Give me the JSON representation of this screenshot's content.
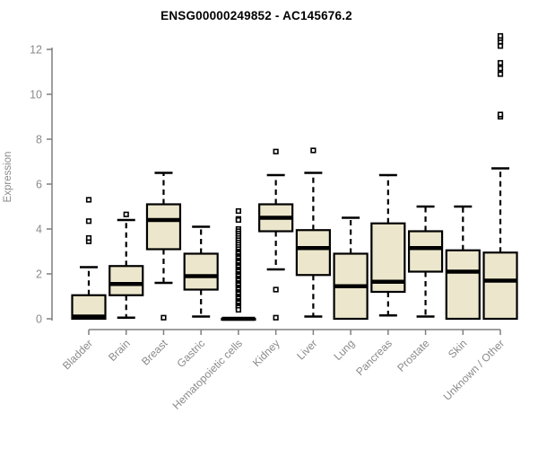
{
  "title": "ENSG00000249852 - AC145676.2",
  "chart_data": {
    "type": "boxplot",
    "title": "ENSG00000249852 - AC145676.2",
    "ylabel": "Expression",
    "xlabel": "",
    "ylim": [
      0,
      12.7
    ],
    "y_ticks": [
      0,
      2,
      4,
      6,
      8,
      10,
      12
    ],
    "grid": false,
    "legend": "none",
    "categories": [
      "Bladder",
      "Brain",
      "Breast",
      "Gastric",
      "Hematopoietic cells",
      "Kidney",
      "Liver",
      "Lung",
      "Pancreas",
      "Prostate",
      "Skin",
      "Unknown / Other"
    ],
    "series": [
      {
        "label": "Bladder",
        "low": 0,
        "q1": 0,
        "median": 0.1,
        "q3": 1.05,
        "high": 2.3,
        "outliers": [
          3.45,
          3.6,
          4.35,
          5.3
        ]
      },
      {
        "label": "Brain",
        "low": 0.05,
        "q1": 1.05,
        "median": 1.55,
        "q3": 2.35,
        "high": 4.4,
        "outliers": [
          4.65
        ]
      },
      {
        "label": "Breast",
        "low": 1.6,
        "q1": 3.1,
        "median": 4.4,
        "q3": 5.1,
        "high": 6.5,
        "outliers": [
          0.05
        ]
      },
      {
        "label": "Gastric",
        "low": 0.1,
        "q1": 1.3,
        "median": 1.9,
        "q3": 2.9,
        "high": 4.1,
        "outliers": []
      },
      {
        "label": "Hematopoietic cells",
        "low": 0,
        "q1": 0,
        "median": 0,
        "q3": 0,
        "high": 0,
        "outliers": [
          4.8,
          4.45,
          4.4,
          4.0,
          3.9,
          3.8,
          3.7,
          3.6,
          3.5,
          3.4,
          3.3,
          3.2,
          3.1,
          3.0,
          2.95,
          2.9,
          2.8,
          2.75,
          2.7,
          2.6,
          2.55,
          2.5,
          2.4,
          2.35,
          2.3,
          2.2,
          2.15,
          2.1,
          2.0,
          1.95,
          1.9,
          1.8,
          1.75,
          1.7,
          1.6,
          1.55,
          1.5,
          1.4,
          1.35,
          1.3,
          1.2,
          1.15,
          1.1,
          1.0,
          0.95,
          0.9,
          0.8,
          0.75,
          0.7,
          0.6,
          0.55,
          0.5,
          0.4
        ]
      },
      {
        "label": "Kidney",
        "low": 2.2,
        "q1": 3.9,
        "median": 4.5,
        "q3": 5.1,
        "high": 6.4,
        "outliers": [
          7.45,
          1.3,
          0.05
        ]
      },
      {
        "label": "Liver",
        "low": 0.1,
        "q1": 1.95,
        "median": 3.15,
        "q3": 3.95,
        "high": 6.5,
        "outliers": [
          7.5
        ]
      },
      {
        "label": "Lung",
        "low": 0,
        "q1": 0,
        "median": 1.45,
        "q3": 2.9,
        "high": 4.5,
        "outliers": []
      },
      {
        "label": "Pancreas",
        "low": 0.15,
        "q1": 1.2,
        "median": 1.65,
        "q3": 4.25,
        "high": 6.4,
        "outliers": []
      },
      {
        "label": "Prostate",
        "low": 0.1,
        "q1": 2.1,
        "median": 3.15,
        "q3": 3.9,
        "high": 5.0,
        "outliers": []
      },
      {
        "label": "Skin",
        "low": 0,
        "q1": 0,
        "median": 2.1,
        "q3": 3.05,
        "high": 5.0,
        "outliers": []
      },
      {
        "label": "Unknown / Other",
        "low": 0,
        "q1": 0,
        "median": 1.7,
        "q3": 2.95,
        "high": 6.7,
        "outliers": [
          9.0,
          9.1,
          10.9,
          11.15,
          11.4,
          12.15,
          12.35,
          12.5,
          12.6
        ]
      }
    ],
    "colors": {
      "box_fill": "#ece7cc",
      "box_stroke": "#000000",
      "median": "#000000",
      "whisker": "#000000",
      "outlier": "#000000",
      "axis": "#7f7f7f",
      "tick_label": "#8a8a8a",
      "title": "#000000",
      "background": "#ffffff"
    }
  }
}
